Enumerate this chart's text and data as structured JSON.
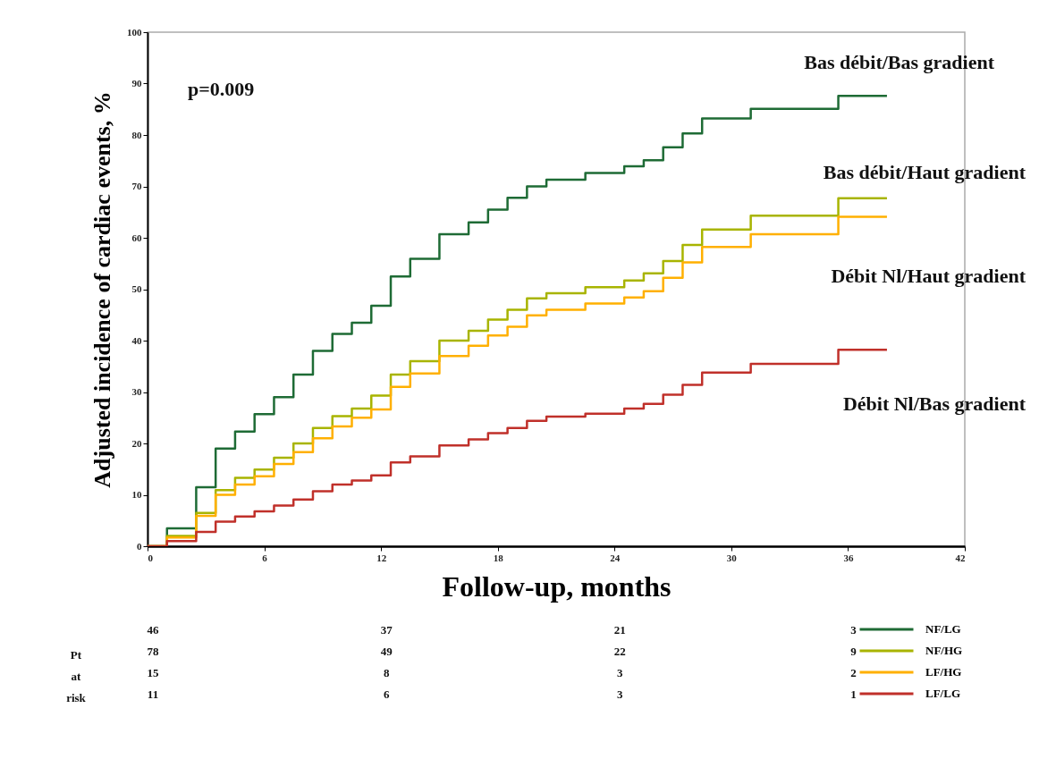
{
  "chart_data": {
    "type": "step",
    "xlabel": "Follow-up, months",
    "ylabel": "Adjusted incidence of cardiac events, %",
    "x": [
      0,
      1,
      2.5,
      3.5,
      4.5,
      5.5,
      6.5,
      7.5,
      8.5,
      9.5,
      10.5,
      11.5,
      12.5,
      13.5,
      15,
      16.5,
      17.5,
      18.5,
      19.5,
      20.5,
      22.5,
      24.5,
      25.5,
      26.5,
      27.5,
      28.5,
      31,
      35.5,
      38
    ],
    "series": [
      {
        "name": "NF/LG",
        "color": "#1e6b35",
        "values": [
          0,
          3.5,
          11.5,
          19,
          22.3,
          25.7,
          29,
          33.4,
          38,
          41.3,
          43.5,
          46.8,
          52.5,
          55.9,
          60.7,
          63,
          65.5,
          67.8,
          70,
          71.3,
          72.6,
          73.9,
          75.1,
          77.6,
          80.3,
          83.2,
          85.1,
          87.6,
          87.6
        ]
      },
      {
        "name": "NF/HG",
        "color": "#a8b400",
        "values": [
          0,
          2,
          6.5,
          10.9,
          13.3,
          14.9,
          17.2,
          20,
          23,
          25.3,
          26.8,
          29.3,
          33.4,
          36,
          40,
          41.9,
          44.1,
          46,
          48.2,
          49.2,
          50.4,
          51.7,
          53.1,
          55.5,
          58.6,
          61.6,
          64.3,
          67.7,
          67.7
        ]
      },
      {
        "name": "LF/HG",
        "color": "#ffb000",
        "values": [
          0,
          1.7,
          5.9,
          10,
          12,
          13.6,
          16,
          18.3,
          21,
          23.3,
          25,
          26.6,
          31,
          33.6,
          37,
          39,
          41,
          42.7,
          44.9,
          46,
          47.2,
          48.4,
          49.6,
          52.2,
          55.2,
          58.2,
          60.7,
          64.1,
          64.1
        ]
      },
      {
        "name": "LF/LG",
        "color": "#c0302a",
        "values": [
          0,
          1,
          2.8,
          4.8,
          5.8,
          6.8,
          7.9,
          9.1,
          10.7,
          12,
          12.8,
          13.8,
          16.3,
          17.5,
          19.6,
          20.8,
          22,
          23,
          24.4,
          25.2,
          25.8,
          26.8,
          27.7,
          29.5,
          31.4,
          33.8,
          35.5,
          38.2,
          38.2
        ]
      }
    ],
    "xlim": [
      0,
      42
    ],
    "xticks": [
      0,
      6,
      12,
      18,
      24,
      30,
      36,
      42
    ],
    "ylim": [
      0,
      100
    ],
    "yticks": [
      0,
      10,
      20,
      30,
      40,
      50,
      60,
      70,
      80,
      90,
      100
    ],
    "legend": "bottom right",
    "annotations": [
      "p=0.009",
      "Bas débit/Bas gradient",
      "Bas débit/Haut gradient",
      "Débit Nl/Haut gradient",
      "Débit Nl/Bas gradient",
      "Pt",
      "at",
      "risk",
      "46",
      "37",
      "21",
      "3",
      "78",
      "49",
      "22",
      "9",
      "15",
      "8",
      "3",
      "2",
      "11",
      "6",
      "3",
      "1"
    ]
  }
}
